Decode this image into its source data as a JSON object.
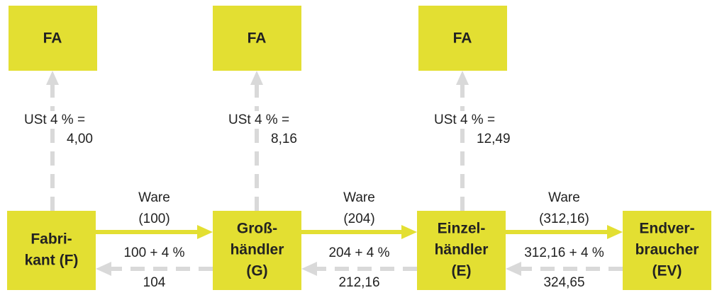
{
  "fa_boxes": [
    "FA",
    "FA",
    "FA"
  ],
  "taxes": [
    {
      "line1": "USt 4 % =",
      "line2": "4,00"
    },
    {
      "line1": "USt 4 % =",
      "line2": "8,16"
    },
    {
      "line1": "USt 4 % =",
      "line2": "12,49"
    }
  ],
  "nodes": [
    {
      "lines": [
        "Fabri-",
        "kant (F)"
      ]
    },
    {
      "lines": [
        "Groß-",
        "händler",
        "(G)"
      ]
    },
    {
      "lines": [
        "Einzel-",
        "händler",
        "(E)"
      ]
    },
    {
      "lines": [
        "Endver-",
        "braucher",
        "(EV)"
      ]
    }
  ],
  "flows": [
    {
      "goods": "Ware",
      "goods_value": "(100)",
      "price": "100 + 4 %",
      "total": "104"
    },
    {
      "goods": "Ware",
      "goods_value": "(204)",
      "price": "204 + 4 %",
      "total": "212,16"
    },
    {
      "goods": "Ware",
      "goods_value": "(312,16)",
      "price": "312,16 + 4 %",
      "total": "324,65"
    }
  ]
}
